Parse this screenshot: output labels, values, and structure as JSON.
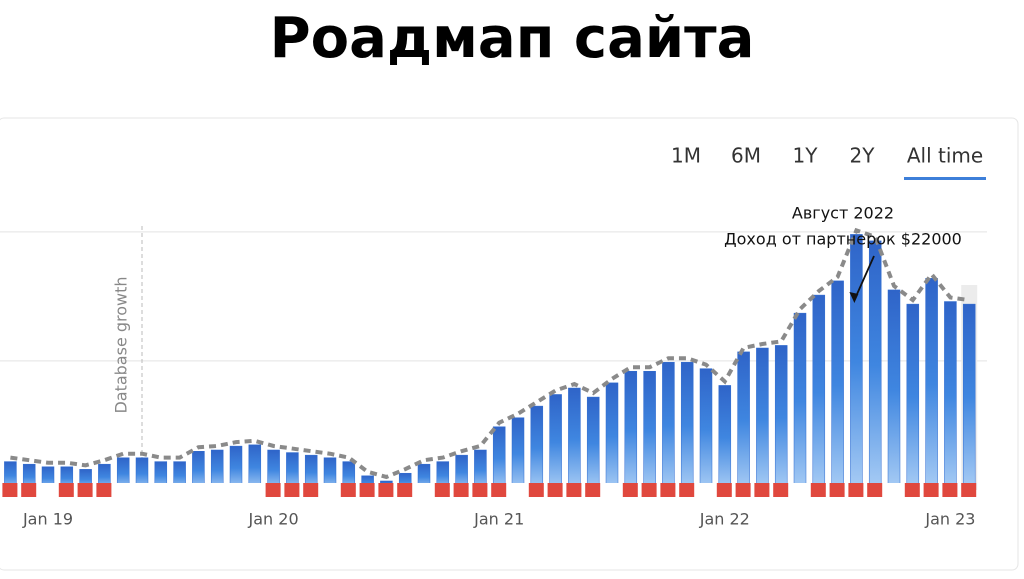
{
  "page_title": "Роадмап сайта",
  "tabs": [
    "1M",
    "6M",
    "1Y",
    "2Y",
    "All time"
  ],
  "active_tab": 4,
  "chart_data": {
    "type": "bar",
    "categories": [
      null,
      null,
      "Jan 19",
      null,
      null,
      null,
      null,
      null,
      null,
      null,
      null,
      null,
      null,
      null,
      "Jan 20",
      null,
      null,
      null,
      null,
      null,
      null,
      null,
      null,
      null,
      null,
      null,
      "Jan 21",
      null,
      null,
      null,
      null,
      null,
      null,
      null,
      null,
      null,
      null,
      null,
      "Jan 22",
      null,
      null,
      null,
      null,
      null,
      null,
      null,
      null,
      null,
      null,
      null,
      "Jan 23",
      null
    ],
    "values": [
      0.22,
      0.2,
      0.18,
      0.18,
      0.16,
      0.2,
      0.25,
      0.25,
      0.22,
      0.22,
      0.3,
      0.31,
      0.34,
      0.35,
      0.31,
      0.29,
      0.27,
      0.25,
      0.22,
      0.11,
      0.07,
      0.13,
      0.2,
      0.22,
      0.27,
      0.31,
      0.49,
      0.56,
      0.65,
      0.74,
      0.79,
      0.72,
      0.83,
      0.92,
      0.92,
      0.99,
      0.99,
      0.94,
      0.81,
      1.07,
      1.1,
      1.12,
      1.37,
      1.51,
      1.62,
      1.98,
      1.93,
      1.55,
      1.44,
      1.64,
      1.46,
      1.44
    ],
    "color": "#2f6bd0",
    "ylim": [
      0,
      2.2
    ],
    "yticks": [
      1,
      2
    ],
    "grid": true,
    "event_label": "Database growth",
    "event_index": 7,
    "annotation": [
      "Август 2022",
      "Доход от партнерок $22000"
    ],
    "annotation_index": 45
  }
}
